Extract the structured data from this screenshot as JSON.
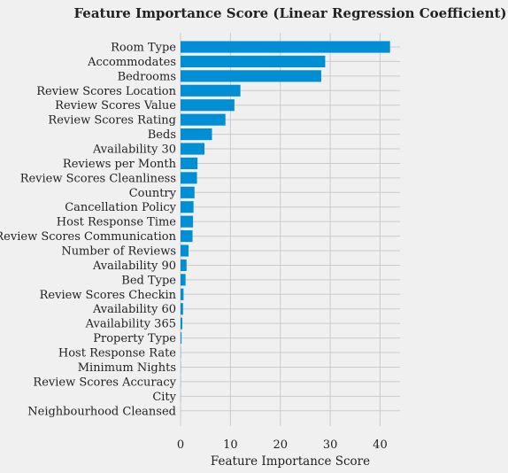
{
  "chart_data": {
    "type": "bar",
    "orientation": "horizontal",
    "title": "Feature Importance Score (Linear Regression Coefficient)",
    "xlabel": "Feature Importance Score",
    "ylabel": "",
    "xlim": [
      0,
      44
    ],
    "xticks": [
      0,
      10,
      20,
      30,
      40
    ],
    "grid": true,
    "bar_color": "#008fd5",
    "background_color": "#f0f0f0",
    "categories": [
      "Room Type",
      "Accommodates",
      "Bedrooms",
      "Review Scores Location",
      "Review Scores Value",
      "Review Scores Rating",
      "Beds",
      "Availability 30",
      "Reviews per Month",
      "Review Scores Cleanliness",
      "Country",
      "Cancellation Policy",
      "Host Response Time",
      "Review Scores Communication",
      "Number of Reviews",
      "Availability 90",
      "Bed Type",
      "Review Scores Checkin",
      "Availability 60",
      "Availability 365",
      "Property Type",
      "Host Response Rate",
      "Minimum Nights",
      "Review Scores Accuracy",
      "City",
      "Neighbourhood Cleansed"
    ],
    "values": [
      42,
      29,
      28.2,
      12,
      10.8,
      9,
      6.3,
      4.8,
      3.4,
      3.3,
      2.8,
      2.6,
      2.5,
      2.4,
      1.6,
      1.2,
      1.0,
      0.6,
      0.5,
      0.35,
      0.2,
      0.05,
      0.04,
      0.03,
      0.02,
      0.01
    ]
  }
}
